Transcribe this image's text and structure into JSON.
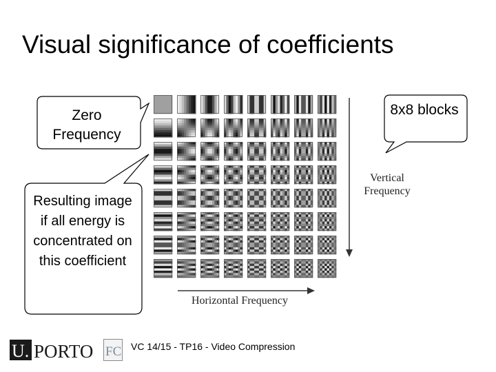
{
  "slide": {
    "title": "Visual significance of coefficients",
    "footer": "VC 14/15 - TP16 - Video Compression"
  },
  "callouts": {
    "zero_frequency": "Zero Frequency",
    "blocks": "8x8 blocks",
    "resulting_image": "Resulting image if all energy is concentrated on this coefficient"
  },
  "figure": {
    "vertical_label_line1": "Vertical",
    "vertical_label_line2": "Frequency",
    "horizontal_label": "Horizontal Frequency",
    "grid_rows": 8,
    "grid_cols": 8
  },
  "logos": {
    "u_porto": "U.PORTO",
    "u_letter": "U.",
    "porto_word": "PORTO",
    "fc": "FC"
  }
}
